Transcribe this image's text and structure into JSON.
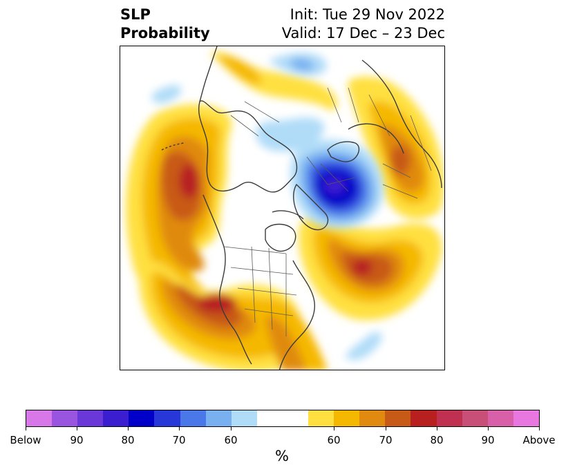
{
  "title": {
    "left_line1": "SLP",
    "left_line2": "Probability",
    "right_line1": "Init: Tue 29 Nov 2022",
    "right_line2": "Valid: 17 Dec – 23 Dec"
  },
  "colorbar": {
    "colors": [
      "#d878e8",
      "#9a55e0",
      "#6a38d8",
      "#3a1ed0",
      "#0000c8",
      "#2838d8",
      "#4a78e8",
      "#78b0f0",
      "#b0dcf8",
      "#ffffff",
      "#ffe040",
      "#f5b800",
      "#e08a10",
      "#c85a18",
      "#b82020",
      "#c03050",
      "#c85078",
      "#d860a8",
      "#e878e0"
    ],
    "tick_labels": [
      "Below",
      "90",
      "80",
      "70",
      "60",
      "60",
      "70",
      "80",
      "90",
      "Above"
    ],
    "unit": "%"
  },
  "map": {
    "projection": "north-polar-stereographic",
    "features": [
      "coastlines",
      "country-borders",
      "state-borders"
    ]
  }
}
